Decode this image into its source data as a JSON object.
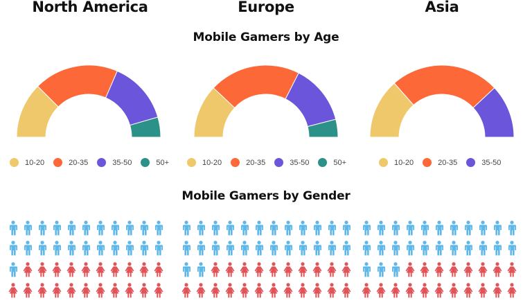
{
  "regions": [
    {
      "title": "North America"
    },
    {
      "title": "Europe"
    },
    {
      "title": "Asia"
    }
  ],
  "sections": {
    "age_title": "Mobile Gamers by Age",
    "gender_title": "Mobile Gamers by Gender"
  },
  "colors": {
    "10-20": "#EEC86A",
    "20-35": "#FD6838",
    "35-50": "#6B55DA",
    "50+": "#2C9189",
    "male": "#5DB7E8",
    "female": "#E05458"
  },
  "legends": [
    {
      "items": [
        {
          "label": "10-20"
        },
        {
          "label": "20-35"
        },
        {
          "label": "35-50"
        },
        {
          "label": "50+"
        }
      ]
    },
    {
      "items": [
        {
          "label": "10-20"
        },
        {
          "label": "20-35"
        },
        {
          "label": "35-50"
        },
        {
          "label": "50+"
        }
      ]
    },
    {
      "items": [
        {
          "label": "10-20"
        },
        {
          "label": "20-35"
        },
        {
          "label": "35-50"
        }
      ]
    }
  ],
  "chart_data": [
    {
      "type": "pie",
      "variant": "half-donut",
      "title": "Mobile Gamers by Age — North America",
      "categories": [
        "10-20",
        "20-35",
        "35-50",
        "50+"
      ],
      "values": [
        25,
        38,
        28,
        9
      ],
      "unit": "% (estimated from arc angles)"
    },
    {
      "type": "pie",
      "variant": "half-donut",
      "title": "Mobile Gamers by Age — Europe",
      "categories": [
        "10-20",
        "20-35",
        "35-50",
        "50+"
      ],
      "values": [
        24,
        41,
        27,
        8
      ],
      "unit": "% (estimated from arc angles)"
    },
    {
      "type": "pie",
      "variant": "half-donut",
      "title": "Mobile Gamers by Age — Asia",
      "categories": [
        "10-20",
        "20-35",
        "35-50"
      ],
      "values": [
        27,
        49,
        24
      ],
      "unit": "% (estimated from arc angles)"
    },
    {
      "type": "pictograph",
      "title": "Mobile Gamers by Gender",
      "regions": [
        "North America",
        "Europe",
        "Asia"
      ],
      "series": [
        {
          "name": "Male",
          "values": [
            23,
            26,
            25
          ]
        },
        {
          "name": "Female",
          "values": [
            21,
            22,
            19
          ]
        }
      ],
      "grid": [
        {
          "columns": 11,
          "rows": 4,
          "total": 44
        },
        {
          "columns": 12,
          "rows": 4,
          "total": 48
        },
        {
          "columns": 11,
          "rows": 4,
          "total": 44
        }
      ]
    }
  ]
}
